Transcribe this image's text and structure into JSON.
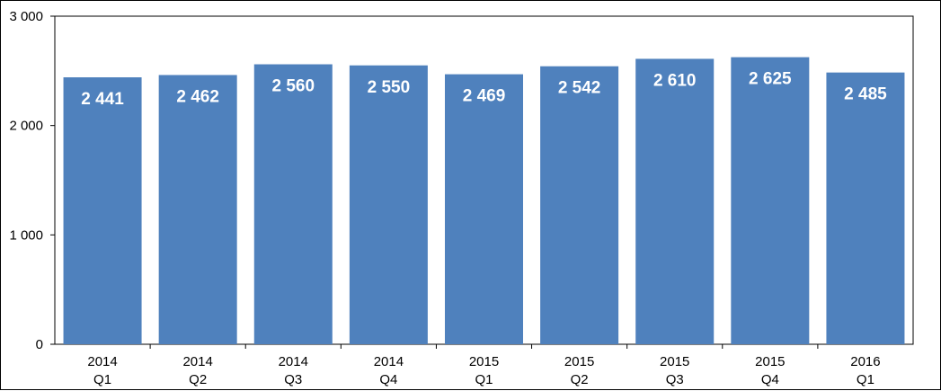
{
  "chart_data": {
    "type": "bar",
    "title": "",
    "xlabel": "",
    "ylabel": "",
    "ylim": [
      0,
      3000
    ],
    "yticks": [
      {
        "value": 0,
        "label": "0"
      },
      {
        "value": 1000,
        "label": "1 000"
      },
      {
        "value": 2000,
        "label": "2 000"
      },
      {
        "value": 3000,
        "label": "3 000"
      }
    ],
    "grid": false,
    "legend": "none",
    "bar_color": "#4F81BD",
    "categories": [
      {
        "year": "2014",
        "quarter": "Q1"
      },
      {
        "year": "2014",
        "quarter": "Q2"
      },
      {
        "year": "2014",
        "quarter": "Q3"
      },
      {
        "year": "2014",
        "quarter": "Q4"
      },
      {
        "year": "2015",
        "quarter": "Q1"
      },
      {
        "year": "2015",
        "quarter": "Q2"
      },
      {
        "year": "2015",
        "quarter": "Q3"
      },
      {
        "year": "2015",
        "quarter": "Q4"
      },
      {
        "year": "2016",
        "quarter": "Q1"
      }
    ],
    "values": [
      2441,
      2462,
      2560,
      2550,
      2469,
      2542,
      2610,
      2625,
      2485
    ],
    "data_labels": [
      "2 441",
      "2 462",
      "2 560",
      "2 550",
      "2 469",
      "2 542",
      "2 610",
      "2 625",
      "2 485"
    ]
  }
}
